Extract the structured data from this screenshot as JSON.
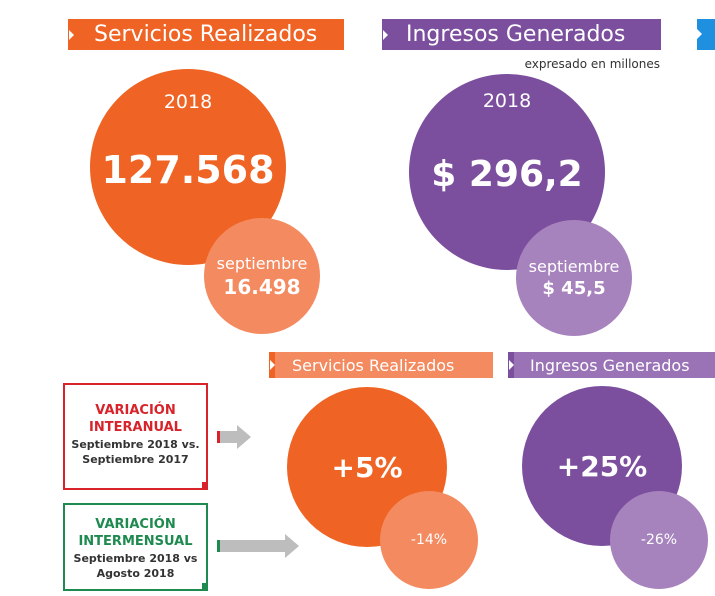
{
  "colors": {
    "orange": "#ef6424",
    "orange_light": "#f48a60",
    "purple": "#7b4f9d",
    "purple_light": "#a783be",
    "red": "#d8232a",
    "green": "#1e8a4f",
    "blue_partial": "#1f8fe0"
  },
  "top": {
    "servicios": {
      "title": "Servicios Realizados",
      "year": "2018",
      "total": "127.568",
      "month": "septiembre",
      "month_value": "16.498"
    },
    "ingresos": {
      "title": "Ingresos Generados",
      "subtitle": "expresado en millones",
      "year": "2018",
      "total": "$ 296,2",
      "month": "septiembre",
      "month_value": "$ 45,5"
    }
  },
  "bottom": {
    "servicios_title": "Servicios Realizados",
    "ingresos_title": "Ingresos Generados",
    "servicios_interanual": "+5%",
    "servicios_intermensual": "-14%",
    "ingresos_interanual": "+25%",
    "ingresos_intermensual": "-26%",
    "interanual": {
      "line1": "VARIACIÓN",
      "line2": "INTERANUAL",
      "line3": "Septiembre 2018 vs.",
      "line4": "Septiembre 2017"
    },
    "intermensual": {
      "line1": "VARIACIÓN",
      "line2": "INTERMENSUAL",
      "line3": "Septiembre 2018 vs",
      "line4": "Agosto 2018"
    }
  }
}
